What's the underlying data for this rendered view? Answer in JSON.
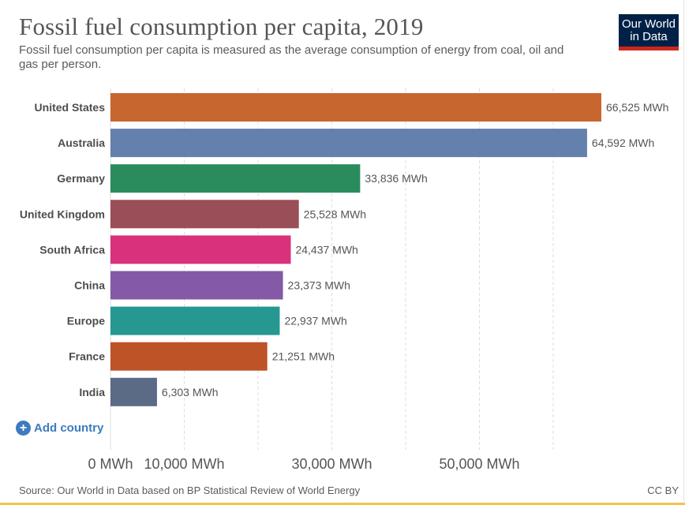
{
  "header": {
    "title": "Fossil fuel consumption per capita, 2019",
    "subtitle": "Fossil fuel consumption per capita is measured as the average consumption of energy from coal, oil and gas per person."
  },
  "logo": {
    "line1": "Our World",
    "line2": "in Data"
  },
  "controls": {
    "add_country_icon": "plus-circle-icon",
    "add_country_label": "Add country"
  },
  "footer": {
    "source": "Source: Our World in Data based on BP Statistical Review of World Energy",
    "license": "CC BY"
  },
  "chart_data": {
    "type": "bar",
    "orientation": "horizontal",
    "title": "Fossil fuel consumption per capita, 2019",
    "unit": "MWh",
    "categories": [
      "United States",
      "Australia",
      "Germany",
      "United Kingdom",
      "South Africa",
      "China",
      "Europe",
      "France",
      "India"
    ],
    "values": [
      66525,
      64592,
      33836,
      25528,
      24437,
      23373,
      22937,
      21251,
      6303
    ],
    "value_labels": [
      "66,525 MWh",
      "64,592 MWh",
      "33,836 MWh",
      "25,528 MWh",
      "24,437 MWh",
      "23,373 MWh",
      "22,937 MWh",
      "21,251 MWh",
      "6,303 MWh"
    ],
    "colors": [
      "#c8662f",
      "#6480ad",
      "#2a8c5c",
      "#9a4e57",
      "#d9317c",
      "#8459a5",
      "#269791",
      "#be5327",
      "#5b6a85"
    ],
    "xlim": [
      0,
      70000
    ],
    "xticks": [
      0,
      10000,
      30000,
      50000
    ],
    "xtick_labels": [
      "0 MWh",
      "10,000 MWh",
      "30,000 MWh",
      "50,000 MWh"
    ],
    "gridlines": [
      0,
      10000,
      20000,
      30000,
      40000,
      50000,
      60000
    ],
    "grid": true
  }
}
